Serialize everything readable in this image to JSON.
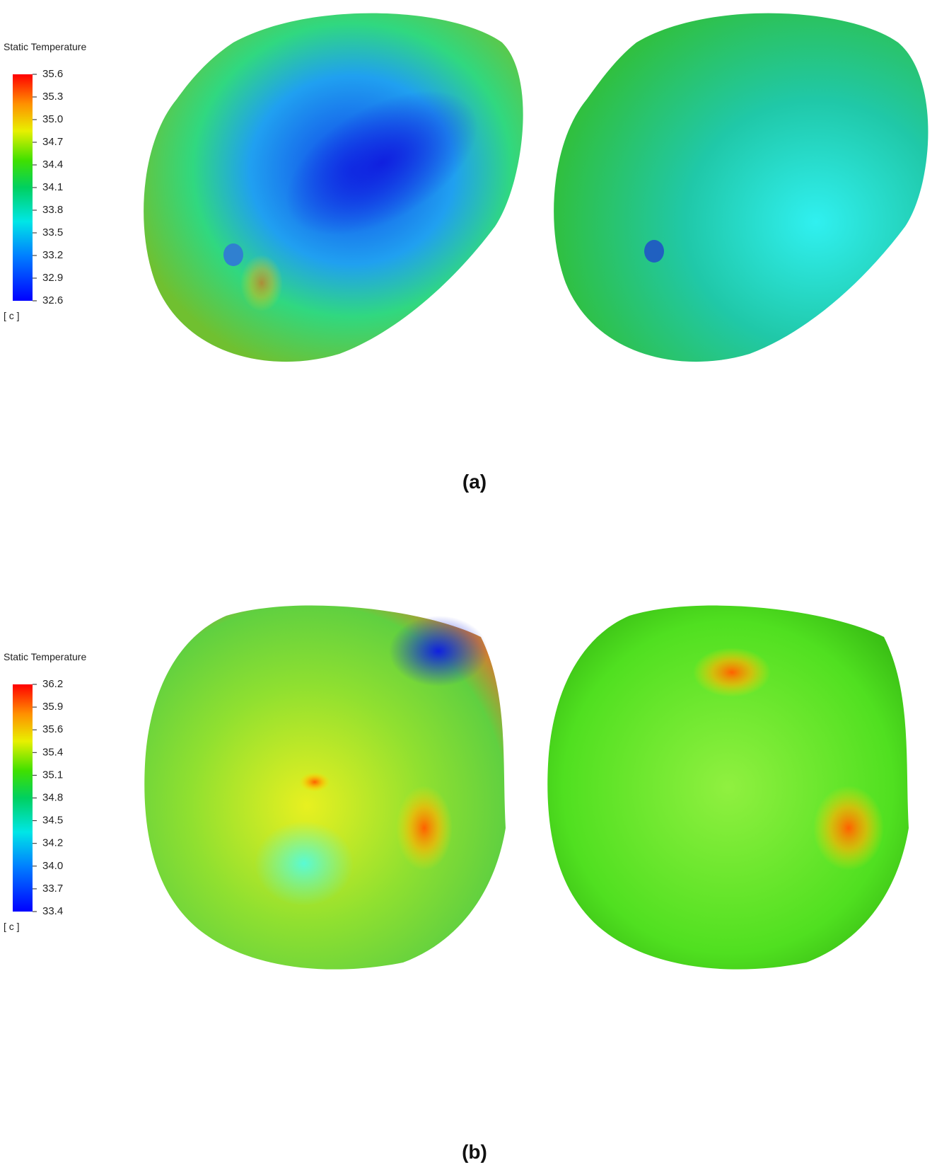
{
  "panels": [
    {
      "legend": {
        "title": "Static Temperature",
        "ticks": [
          "35.6",
          "35.3",
          "35.0",
          "34.7",
          "34.4",
          "34.1",
          "33.8",
          "33.5",
          "33.2",
          "32.9",
          "32.6"
        ],
        "unit": "[ c ]"
      },
      "caption": "(a)"
    },
    {
      "legend": {
        "title": "Static Temperature",
        "ticks": [
          "36.2",
          "35.9",
          "35.6",
          "35.4",
          "35.1",
          "34.8",
          "34.5",
          "34.2",
          "34.0",
          "33.7",
          "33.4"
        ],
        "unit": "[ c ]"
      },
      "caption": "(b)"
    }
  ]
}
